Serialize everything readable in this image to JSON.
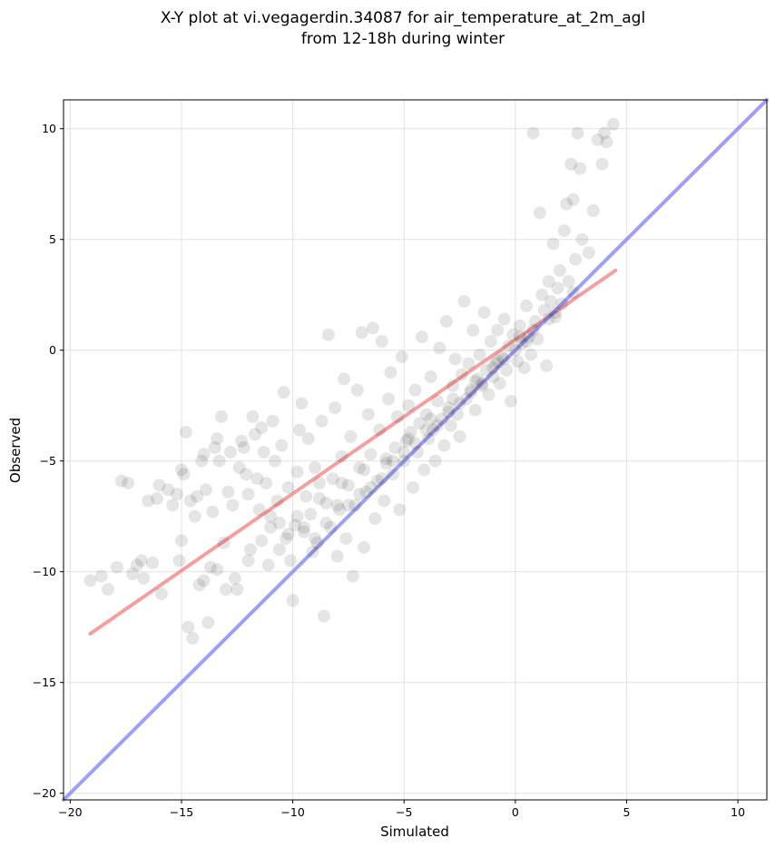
{
  "chart_data": {
    "type": "scatter",
    "title": "X-Y plot at vi.vegagerdin.34087 for air_temperature_at_2m_agl",
    "subtitle": "from 12-18h during winter",
    "xlabel": "Simulated",
    "ylabel": "Observed",
    "xlim": [
      -20.3,
      11.3
    ],
    "ylim": [
      -20.3,
      11.3
    ],
    "xticks": [
      -20,
      -15,
      -10,
      -5,
      0,
      5,
      10
    ],
    "yticks": [
      -20,
      -15,
      -10,
      -5,
      0,
      5,
      10
    ],
    "xtick_labels": [
      "−20",
      "−15",
      "−10",
      "−5",
      "0",
      "5",
      "10"
    ],
    "ytick_labels": [
      "−20",
      "−15",
      "−10",
      "−5",
      "0",
      "5",
      "10"
    ],
    "grid": true,
    "marker_color": "#000000",
    "marker_alpha": 0.1,
    "series": [
      {
        "values_note": "",
        "points": [
          [
            -19.1,
            -10.4
          ],
          [
            -18.6,
            -10.2
          ],
          [
            -18.3,
            -10.8
          ],
          [
            -17.9,
            -9.8
          ],
          [
            -17.7,
            -5.9
          ],
          [
            -17.4,
            -6.0
          ],
          [
            -17.2,
            -10.1
          ],
          [
            -17.0,
            -9.7
          ],
          [
            -16.8,
            -9.5
          ],
          [
            -16.7,
            -10.3
          ],
          [
            -16.5,
            -6.8
          ],
          [
            -16.3,
            -9.6
          ],
          [
            -16.1,
            -6.7
          ],
          [
            -16.0,
            -6.1
          ],
          [
            -15.9,
            -11.0
          ],
          [
            -15.6,
            -6.3
          ],
          [
            -15.4,
            -7.0
          ],
          [
            -15.2,
            -6.5
          ],
          [
            -15.1,
            -9.5
          ],
          [
            -15.0,
            -8.6
          ],
          [
            -15.0,
            -5.4
          ],
          [
            -14.9,
            -5.6
          ],
          [
            -14.8,
            -3.7
          ],
          [
            -14.7,
            -12.5
          ],
          [
            -14.6,
            -6.8
          ],
          [
            -14.5,
            -13.0
          ],
          [
            -14.4,
            -7.5
          ],
          [
            -14.3,
            -6.6
          ],
          [
            -14.2,
            -10.6
          ],
          [
            -14.1,
            -5.0
          ],
          [
            -14.0,
            -4.7
          ],
          [
            -13.9,
            -6.3
          ],
          [
            -13.8,
            -12.3
          ],
          [
            -13.7,
            -9.8
          ],
          [
            -13.6,
            -7.3
          ],
          [
            -13.5,
            -4.4
          ],
          [
            -13.4,
            -4.0
          ],
          [
            -13.3,
            -5.0
          ],
          [
            -13.2,
            -3.0
          ],
          [
            -13.1,
            -8.7
          ],
          [
            -13.0,
            -10.8
          ],
          [
            -12.9,
            -6.4
          ],
          [
            -12.8,
            -4.6
          ],
          [
            -12.7,
            -7.0
          ],
          [
            -12.6,
            -10.3
          ],
          [
            -12.5,
            -10.8
          ],
          [
            -12.4,
            -5.3
          ],
          [
            -12.3,
            -4.1
          ],
          [
            -12.2,
            -4.4
          ],
          [
            -12.1,
            -5.6
          ],
          [
            -12.0,
            -6.5
          ],
          [
            -11.9,
            -9.0
          ],
          [
            -11.8,
            -3.0
          ],
          [
            -11.7,
            -3.8
          ],
          [
            -11.6,
            -5.8
          ],
          [
            -11.5,
            -7.2
          ],
          [
            -11.4,
            -3.5
          ],
          [
            -11.3,
            -4.6
          ],
          [
            -11.2,
            -6.0
          ],
          [
            -11.1,
            -9.7
          ],
          [
            -11.0,
            -7.5
          ],
          [
            -10.9,
            -3.2
          ],
          [
            -10.8,
            -5.0
          ],
          [
            -10.7,
            -6.8
          ],
          [
            -10.6,
            -7.8
          ],
          [
            -10.5,
            -4.3
          ],
          [
            -10.4,
            -1.9
          ],
          [
            -10.3,
            -8.5
          ],
          [
            -10.2,
            -6.2
          ],
          [
            -10.1,
            -9.5
          ],
          [
            -10.0,
            -11.3
          ],
          [
            -9.9,
            -7.9
          ],
          [
            -9.8,
            -5.5
          ],
          [
            -9.7,
            -3.6
          ],
          [
            -9.6,
            -2.4
          ],
          [
            -9.5,
            -8.2
          ],
          [
            -9.4,
            -6.6
          ],
          [
            -9.3,
            -4.0
          ],
          [
            -9.2,
            -7.4
          ],
          [
            -9.1,
            -9.1
          ],
          [
            -9.0,
            -5.3
          ],
          [
            -8.9,
            -8.7
          ],
          [
            -8.8,
            -6.0
          ],
          [
            -8.7,
            -3.2
          ],
          [
            -8.6,
            -12.0
          ],
          [
            -8.5,
            -6.9
          ],
          [
            -8.4,
            0.7
          ],
          [
            -8.3,
            -8.0
          ],
          [
            -8.2,
            -5.8
          ],
          [
            -8.1,
            -2.6
          ],
          [
            -8.0,
            -9.3
          ],
          [
            -7.9,
            -7.2
          ],
          [
            -7.8,
            -4.8
          ],
          [
            -7.7,
            -1.3
          ],
          [
            -7.6,
            -8.5
          ],
          [
            -7.5,
            -6.1
          ],
          [
            -7.4,
            -3.9
          ],
          [
            -7.3,
            -10.2
          ],
          [
            -7.2,
            -7.0
          ],
          [
            -7.1,
            -1.8
          ],
          [
            -7.0,
            -5.3
          ],
          [
            -6.9,
            0.8
          ],
          [
            -6.8,
            -8.9
          ],
          [
            -6.7,
            -6.4
          ],
          [
            -6.6,
            -2.9
          ],
          [
            -6.5,
            -4.7
          ],
          [
            -6.4,
            1.0
          ],
          [
            -6.3,
            -7.6
          ],
          [
            -6.2,
            -5.9
          ],
          [
            -6.1,
            -3.6
          ],
          [
            -6.0,
            0.4
          ],
          [
            -5.9,
            -6.8
          ],
          [
            -5.8,
            -5.1
          ],
          [
            -5.7,
            -2.2
          ],
          [
            -5.6,
            -1.0
          ],
          [
            -5.5,
            -5.6
          ],
          [
            -5.4,
            -4.4
          ],
          [
            -5.3,
            -3.0
          ],
          [
            -5.2,
            -7.2
          ],
          [
            -5.1,
            -0.3
          ],
          [
            -5.0,
            -5.0
          ],
          [
            -4.9,
            -4.1
          ],
          [
            -4.8,
            -2.5
          ],
          [
            -4.7,
            -3.7
          ],
          [
            -4.6,
            -6.2
          ],
          [
            -4.5,
            -1.8
          ],
          [
            -4.4,
            -4.6
          ],
          [
            -4.3,
            -3.3
          ],
          [
            -4.2,
            0.6
          ],
          [
            -4.1,
            -5.4
          ],
          [
            -4.0,
            -2.9
          ],
          [
            -3.9,
            -4.0
          ],
          [
            -3.8,
            -1.2
          ],
          [
            -3.7,
            -3.6
          ],
          [
            -3.6,
            -5.0
          ],
          [
            -3.5,
            -2.3
          ],
          [
            -3.4,
            0.1
          ],
          [
            -3.3,
            -3.1
          ],
          [
            -3.2,
            -4.3
          ],
          [
            -3.1,
            1.3
          ],
          [
            -3.0,
            -2.6
          ],
          [
            -2.9,
            -3.4
          ],
          [
            -2.8,
            -1.6
          ],
          [
            -2.7,
            -0.4
          ],
          [
            -2.6,
            -2.9
          ],
          [
            -2.5,
            -3.9
          ],
          [
            -2.4,
            -1.1
          ],
          [
            -2.3,
            2.2
          ],
          [
            -2.2,
            -2.2
          ],
          [
            -2.1,
            -0.6
          ],
          [
            -2.0,
            -1.8
          ],
          [
            -1.9,
            0.9
          ],
          [
            -1.8,
            -2.7
          ],
          [
            -1.7,
            -1.3
          ],
          [
            -1.6,
            -0.2
          ],
          [
            -1.5,
            -1.6
          ],
          [
            -1.4,
            1.7
          ],
          [
            -1.3,
            -0.9
          ],
          [
            -1.2,
            -2.0
          ],
          [
            -1.1,
            0.4
          ],
          [
            -1.0,
            -1.2
          ],
          [
            -0.9,
            -0.6
          ],
          [
            -0.8,
            0.9
          ],
          [
            -0.7,
            -1.5
          ],
          [
            -0.6,
            -0.3
          ],
          [
            -0.5,
            1.4
          ],
          [
            -0.4,
            -0.9
          ],
          [
            -0.3,
            0.2
          ],
          [
            -0.2,
            -2.3
          ],
          [
            -0.1,
            0.7
          ],
          [
            0.0,
            0.0
          ],
          [
            0.1,
            -0.5
          ],
          [
            0.2,
            1.1
          ],
          [
            0.3,
            0.3
          ],
          [
            0.4,
            -0.8
          ],
          [
            0.5,
            2.0
          ],
          [
            0.6,
            0.6
          ],
          [
            0.7,
            -0.2
          ],
          [
            0.8,
            9.8
          ],
          [
            0.9,
            1.3
          ],
          [
            1.0,
            0.5
          ],
          [
            1.1,
            6.2
          ],
          [
            1.2,
            2.5
          ],
          [
            1.3,
            1.8
          ],
          [
            1.4,
            -0.7
          ],
          [
            1.5,
            3.1
          ],
          [
            1.6,
            2.2
          ],
          [
            1.7,
            4.8
          ],
          [
            1.8,
            1.5
          ],
          [
            1.9,
            2.8
          ],
          [
            2.0,
            3.6
          ],
          [
            2.1,
            2.1
          ],
          [
            2.2,
            5.4
          ],
          [
            2.3,
            6.6
          ],
          [
            2.4,
            3.1
          ],
          [
            2.5,
            8.4
          ],
          [
            2.6,
            6.8
          ],
          [
            2.7,
            4.1
          ],
          [
            2.8,
            9.8
          ],
          [
            2.9,
            8.2
          ],
          [
            3.0,
            5.0
          ],
          [
            3.3,
            4.4
          ],
          [
            3.5,
            6.3
          ],
          [
            3.7,
            9.5
          ],
          [
            3.9,
            8.4
          ],
          [
            4.0,
            9.8
          ],
          [
            4.1,
            9.4
          ],
          [
            4.4,
            10.2
          ],
          [
            -6.0,
            -5.8
          ],
          [
            -5.5,
            -5.0
          ],
          [
            -7.5,
            -7.0
          ],
          [
            -8.5,
            -7.8
          ],
          [
            -9.0,
            -8.5
          ],
          [
            -6.5,
            -6.2
          ],
          [
            -4.5,
            -4.2
          ],
          [
            -3.5,
            -3.4
          ],
          [
            -2.5,
            -2.4
          ],
          [
            -1.5,
            -1.5
          ],
          [
            -0.5,
            -0.4
          ],
          [
            0.5,
            0.4
          ],
          [
            1.5,
            1.4
          ],
          [
            -9.5,
            -8.0
          ],
          [
            -8.0,
            -7.0
          ],
          [
            -7.0,
            -6.5
          ],
          [
            -5.0,
            -4.6
          ],
          [
            -4.0,
            -3.6
          ],
          [
            -3.0,
            -2.8
          ],
          [
            -2.0,
            -1.9
          ],
          [
            -1.0,
            -0.8
          ],
          [
            0.2,
            0.6
          ],
          [
            -10.2,
            -8.3
          ],
          [
            -9.8,
            -7.5
          ],
          [
            -8.8,
            -6.7
          ],
          [
            -7.8,
            -6.0
          ],
          [
            -6.8,
            -5.4
          ],
          [
            -5.8,
            -4.9
          ],
          [
            -4.8,
            -4.0
          ],
          [
            -3.8,
            -3.1
          ],
          [
            -2.8,
            -2.2
          ],
          [
            -1.8,
            -1.4
          ],
          [
            -0.8,
            -0.5
          ],
          [
            0.8,
            0.9
          ],
          [
            1.8,
            1.7
          ],
          [
            2.6,
            2.6
          ],
          [
            -11.0,
            -8.0
          ],
          [
            -10.6,
            -9.0
          ],
          [
            -12.0,
            -9.5
          ],
          [
            -11.4,
            -8.6
          ],
          [
            -13.4,
            -9.9
          ],
          [
            -14.0,
            -10.4
          ]
        ]
      }
    ],
    "lines": [
      {
        "kind": "regression",
        "color": "#f08080",
        "points": [
          [
            -19.1,
            -12.8
          ],
          [
            4.5,
            3.6
          ]
        ]
      },
      {
        "kind": "identity",
        "color": "#7f7ff0",
        "points": [
          [
            -20.3,
            -20.3
          ],
          [
            11.3,
            11.3
          ]
        ]
      }
    ]
  }
}
